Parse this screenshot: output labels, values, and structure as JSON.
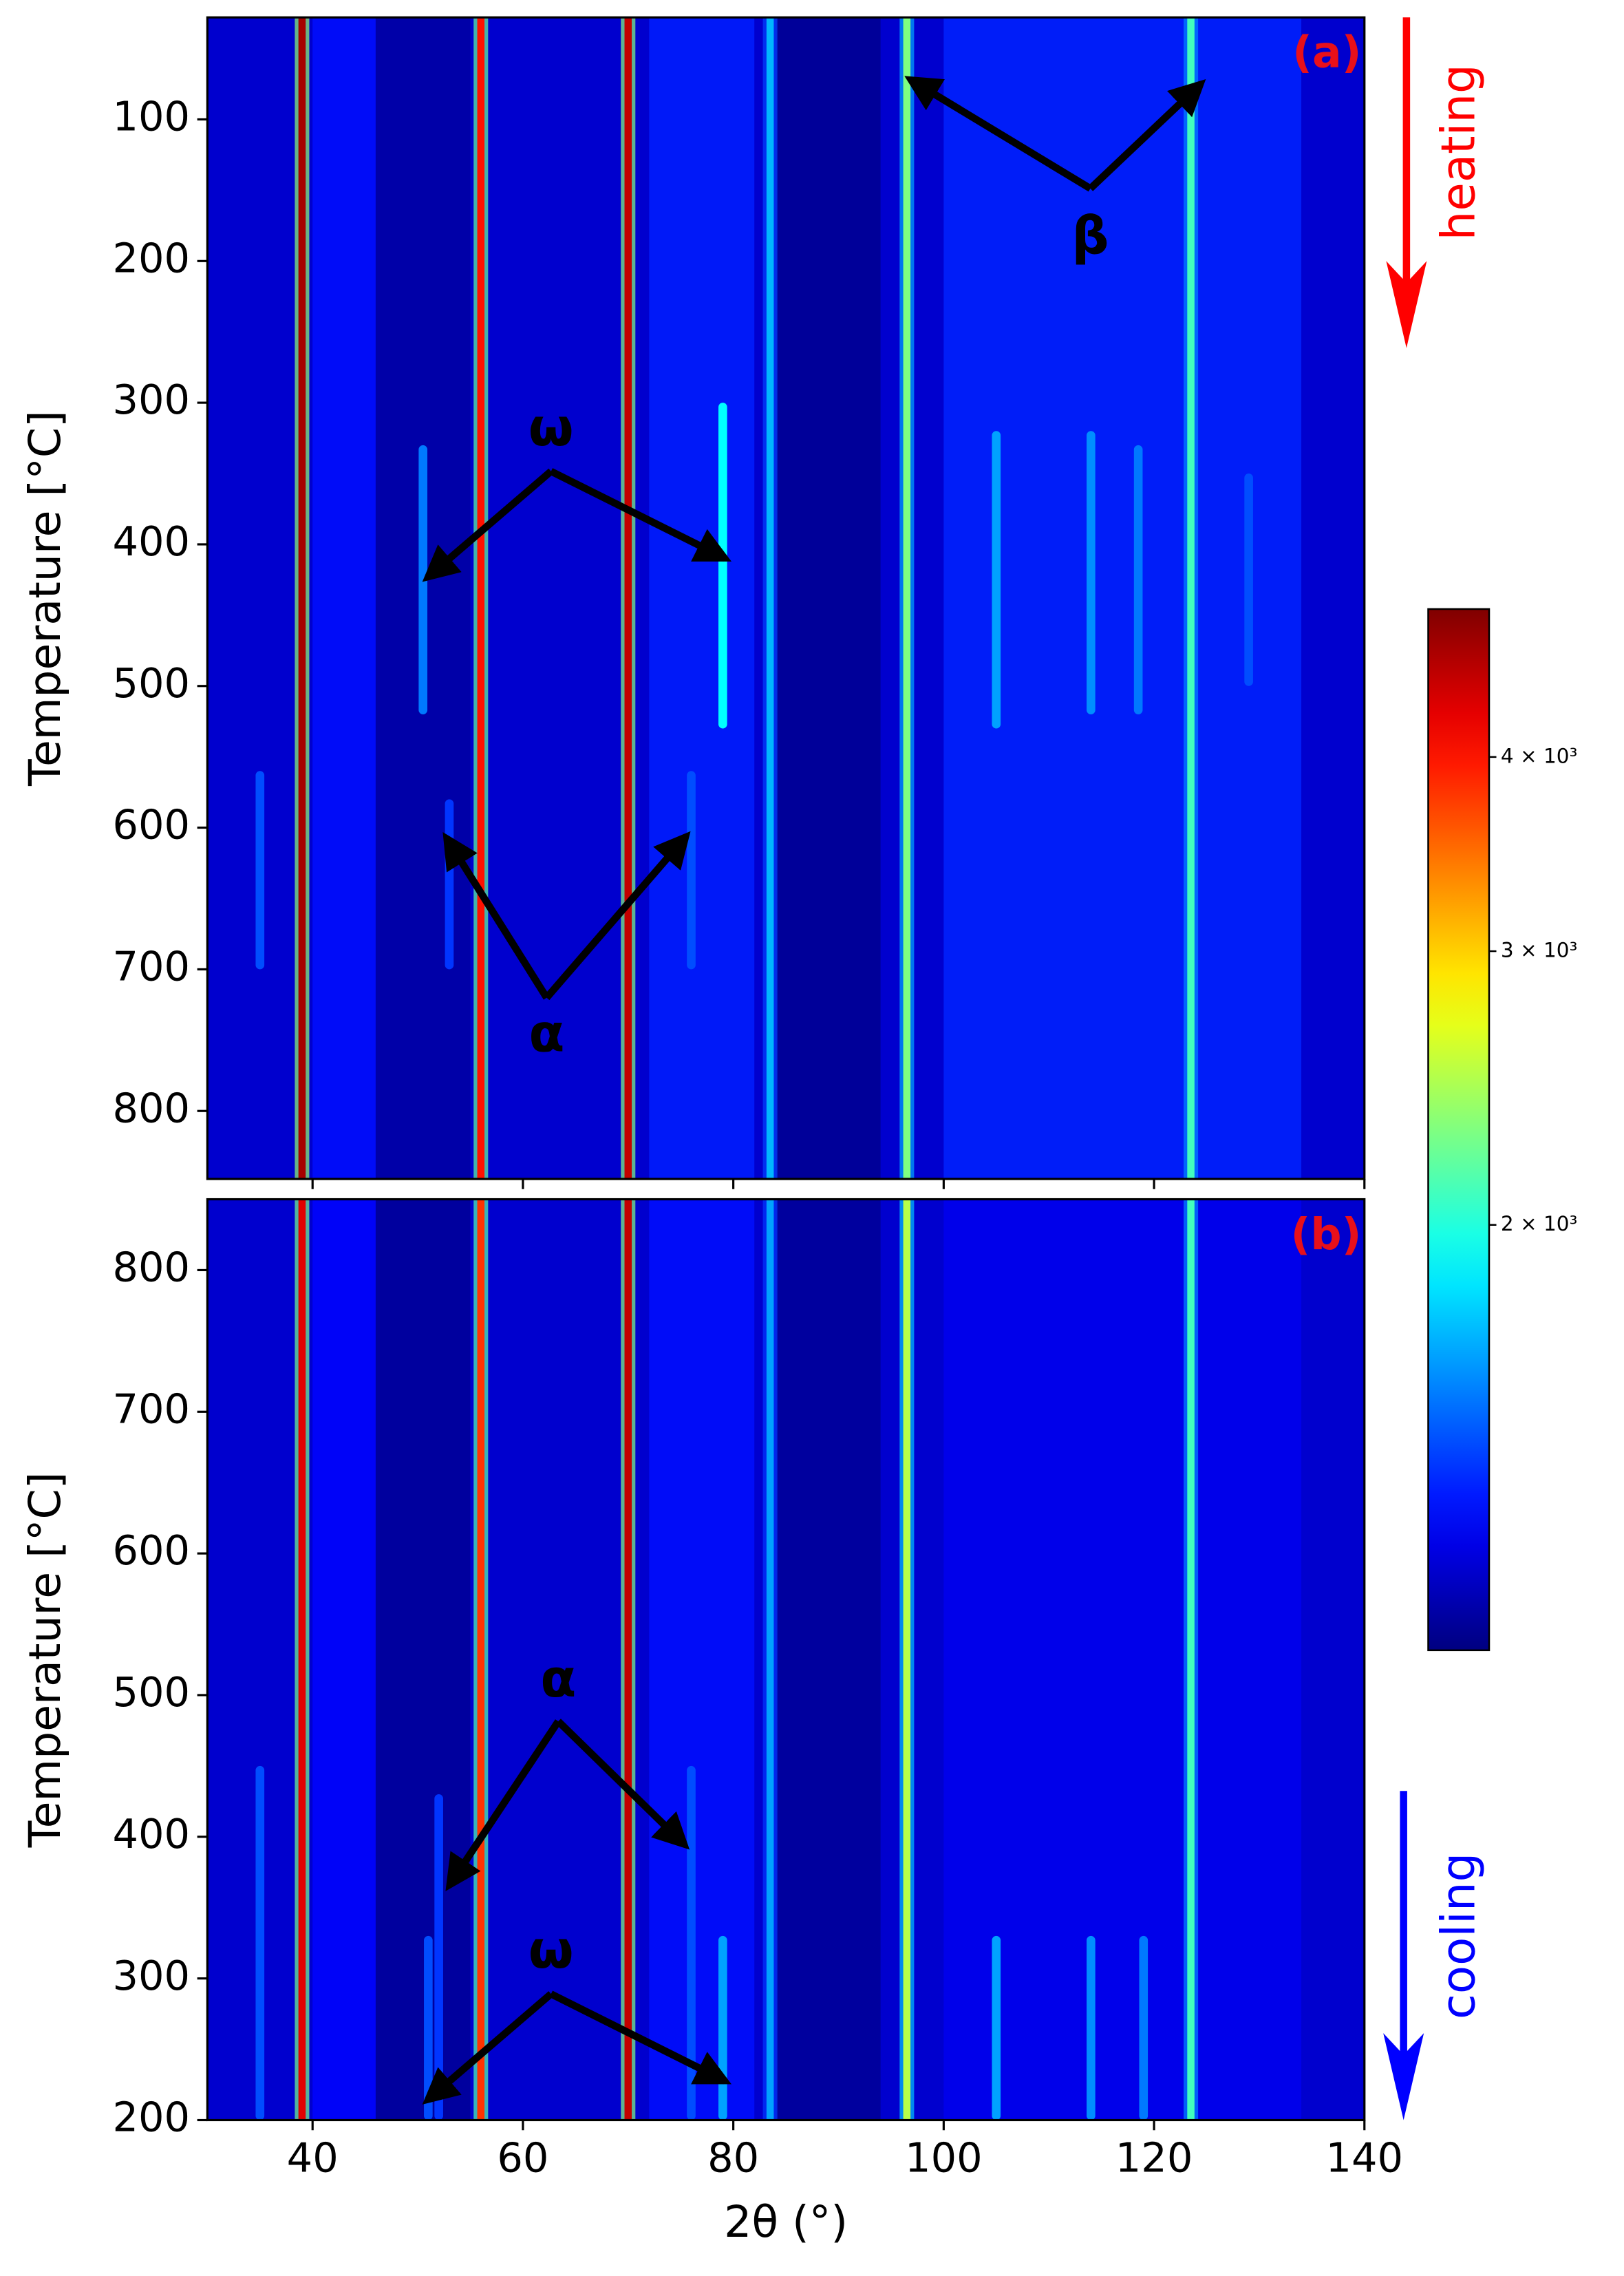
{
  "chart_data": [
    {
      "type": "heatmap",
      "label": "(a)",
      "ylabel": "Temperature [°C]",
      "xlim": [
        30,
        140
      ],
      "xticks": [
        40,
        60,
        80,
        100,
        120,
        140
      ],
      "xtick_labels": false,
      "ylim": [
        848,
        28
      ],
      "yticks": [
        100,
        200,
        300,
        400,
        500,
        600,
        700,
        800
      ],
      "background": 1200,
      "bands": [
        {
          "from": 40,
          "to": 46,
          "intensity": 1320
        },
        {
          "from": 46,
          "to": 55,
          "intensity": 1120
        },
        {
          "from": 72,
          "to": 82,
          "intensity": 1350
        },
        {
          "from": 84,
          "to": 94,
          "intensity": 1090
        },
        {
          "from": 100,
          "to": 134,
          "intensity": 1360
        }
      ],
      "peaks": [
        {
          "two_theta": 39,
          "intensity": 4700
        },
        {
          "two_theta": 56,
          "intensity": 4000
        },
        {
          "two_theta": 70,
          "intensity": 4500
        },
        {
          "two_theta": 83.5,
          "intensity": 1700
        },
        {
          "two_theta": 96.5,
          "intensity": 2300
        },
        {
          "two_theta": 123.5,
          "intensity": 2100
        }
      ],
      "transient_peaks": [
        {
          "two_theta": 50.5,
          "from": 330,
          "to": 520,
          "intensity": 1550
        },
        {
          "two_theta": 79,
          "from": 300,
          "to": 530,
          "intensity": 1900
        },
        {
          "two_theta": 105,
          "from": 320,
          "to": 530,
          "intensity": 1650
        },
        {
          "two_theta": 114,
          "from": 320,
          "to": 520,
          "intensity": 1600
        },
        {
          "two_theta": 118.5,
          "from": 330,
          "to": 520,
          "intensity": 1550
        },
        {
          "two_theta": 129,
          "from": 350,
          "to": 500,
          "intensity": 1450
        },
        {
          "two_theta": 35,
          "from": 560,
          "to": 700,
          "intensity": 1450
        },
        {
          "two_theta": 53,
          "from": 580,
          "to": 700,
          "intensity": 1400
        },
        {
          "two_theta": 76,
          "from": 560,
          "to": 700,
          "intensity": 1450
        }
      ],
      "annotations": [
        {
          "text": "β"
        },
        {
          "text": "ω"
        },
        {
          "text": "α"
        },
        {
          "text": "heating",
          "color": "#ff0000"
        }
      ],
      "colorbar": {
        "scale": "log",
        "clim": [
          1065,
          4980
        ],
        "cmap": "jet",
        "ticks": [
          {
            "value": 2000,
            "label": "2 × 10³"
          },
          {
            "value": 3000,
            "label": "3 × 10³"
          },
          {
            "value": 4000,
            "label": "4 × 10³"
          }
        ]
      }
    },
    {
      "type": "heatmap",
      "label": "(b)",
      "ylabel": "Temperature [°C]",
      "xlabel": "2θ (°)",
      "xlim": [
        30,
        140
      ],
      "xticks": [
        40,
        60,
        80,
        100,
        120,
        140
      ],
      "xtick_labels": true,
      "ylim": [
        200,
        850
      ],
      "yticks": [
        200,
        300,
        400,
        500,
        600,
        700,
        800
      ],
      "background": 1200,
      "bands": [
        {
          "from": 40,
          "to": 46,
          "intensity": 1300
        },
        {
          "from": 46,
          "to": 55,
          "intensity": 1100
        },
        {
          "from": 72,
          "to": 82,
          "intensity": 1320
        },
        {
          "from": 84,
          "to": 94,
          "intensity": 1100
        },
        {
          "from": 100,
          "to": 134,
          "intensity": 1260
        }
      ],
      "peaks": [
        {
          "two_theta": 39,
          "intensity": 4300
        },
        {
          "two_theta": 56,
          "intensity": 3800
        },
        {
          "two_theta": 70,
          "intensity": 4500
        },
        {
          "two_theta": 83.5,
          "intensity": 1650
        },
        {
          "two_theta": 96.5,
          "intensity": 2500
        },
        {
          "two_theta": 123.5,
          "intensity": 2100
        }
      ],
      "transient_peaks": [
        {
          "two_theta": 35,
          "from": 200,
          "to": 450,
          "intensity": 1450
        },
        {
          "two_theta": 52,
          "from": 200,
          "to": 430,
          "intensity": 1400
        },
        {
          "two_theta": 76,
          "from": 200,
          "to": 450,
          "intensity": 1450
        },
        {
          "two_theta": 51,
          "from": 200,
          "to": 330,
          "intensity": 1450
        },
        {
          "two_theta": 79,
          "from": 200,
          "to": 330,
          "intensity": 1650
        },
        {
          "two_theta": 105,
          "from": 200,
          "to": 330,
          "intensity": 1650
        },
        {
          "two_theta": 114,
          "from": 200,
          "to": 330,
          "intensity": 1600
        },
        {
          "two_theta": 119,
          "from": 200,
          "to": 330,
          "intensity": 1550
        }
      ],
      "annotations": [
        {
          "text": "α"
        },
        {
          "text": "ω"
        },
        {
          "text": "cooling",
          "color": "#0000ff"
        }
      ]
    }
  ]
}
